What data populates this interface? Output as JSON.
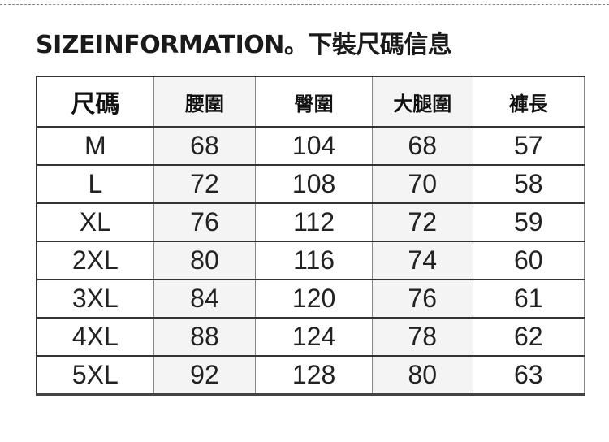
{
  "title": "SIZEINFORMATION。下裝尺碼信息",
  "table": {
    "headers": [
      "尺碼",
      "腰圍",
      "臀圍",
      "大腿圍",
      "褲長"
    ],
    "rows": [
      [
        "M",
        "68",
        "104",
        "68",
        "57"
      ],
      [
        "L",
        "72",
        "108",
        "70",
        "58"
      ],
      [
        "XL",
        "76",
        "112",
        "72",
        "59"
      ],
      [
        "2XL",
        "80",
        "116",
        "74",
        "60"
      ],
      [
        "3XL",
        "84",
        "120",
        "76",
        "61"
      ],
      [
        "4XL",
        "88",
        "124",
        "78",
        "62"
      ],
      [
        "5XL",
        "92",
        "128",
        "80",
        "63"
      ]
    ]
  },
  "colors": {
    "shaded_column": "#f4f4f4",
    "border": "#333333"
  }
}
